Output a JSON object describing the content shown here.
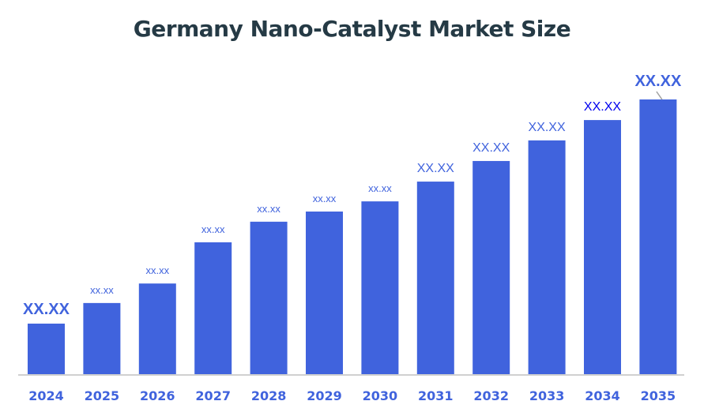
{
  "chart_data": {
    "type": "bar",
    "title": "Germany Nano-Catalyst Market Size",
    "xlabel": "",
    "ylabel": "",
    "categories": [
      "2024",
      "2025",
      "2026",
      "2027",
      "2028",
      "2029",
      "2030",
      "2031",
      "2032",
      "2033",
      "2034",
      "2035"
    ],
    "values": [
      18.4,
      25.9,
      33.0,
      48.0,
      55.5,
      59.2,
      62.9,
      70.1,
      77.6,
      85.1,
      92.5,
      100
    ],
    "data_labels": [
      "XX.XX",
      "xx.xx",
      "xx.xx",
      "xx.xx",
      "xx.xx",
      "xx.xx",
      "xx.xx",
      "XX.XX",
      "XX.XX",
      "XX.XX",
      "XX.XX",
      "XX.XX"
    ],
    "ylim": [
      0,
      100
    ],
    "grid": false,
    "legend": "none",
    "colors": {
      "bar": "#4063dd",
      "label": "#4063dd",
      "label_highlight": "#0000ee",
      "title": "#253a45",
      "axis": "#d0d0d0"
    }
  }
}
